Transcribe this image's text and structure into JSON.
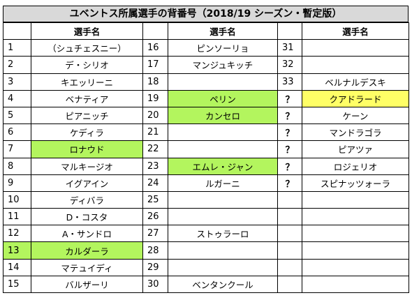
{
  "title": "ユベントス所属選手の背番号（2018/19 シーズン・暫定版）",
  "column_header": "選手名",
  "colors": {
    "header_bg": "#d9d9d9",
    "green": "#b3f55e",
    "yellow": "#ffff66",
    "grid": "#000000"
  },
  "rows": [
    {
      "n1": "1",
      "p1": "（シュチェスニー）",
      "n2": "16",
      "p2": "ピンソーリョ",
      "n3": "31",
      "p3": ""
    },
    {
      "n1": "2",
      "p1": "デ・シリオ",
      "n2": "17",
      "p2": "マンジュキッチ",
      "n3": "32",
      "p3": ""
    },
    {
      "n1": "3",
      "p1": "キエッリーニ",
      "n2": "18",
      "p2": "",
      "n3": "33",
      "p3": "ベルナルデスキ"
    },
    {
      "n1": "4",
      "p1": "ベナティア",
      "n2": "19",
      "p2": "ペリン",
      "p2_hl": "green",
      "n3": "？",
      "p3": "クアドラード",
      "p3_hl": "yellow"
    },
    {
      "n1": "5",
      "p1": "ピアニッチ",
      "n2": "20",
      "p2": "カンセロ",
      "p2_hl": "green",
      "n3": "？",
      "p3": "ケーン"
    },
    {
      "n1": "6",
      "p1": "ケディラ",
      "n2": "21",
      "p2": "",
      "n3": "？",
      "p3": "マンドラゴラ"
    },
    {
      "n1": "7",
      "p1": "ロナウド",
      "p1_hl": "green",
      "n2": "22",
      "p2": "",
      "n3": "？",
      "p3": "ピアツァ"
    },
    {
      "n1": "8",
      "p1": "マルキージオ",
      "n2": "23",
      "p2": "エムレ・ジャン",
      "p2_hl": "green",
      "n3": "？",
      "p3": "ロジェリオ"
    },
    {
      "n1": "9",
      "p1": "イグアイン",
      "n2": "24",
      "p2": "ルガーニ",
      "n3": "？",
      "p3": "スピナッツォーラ"
    },
    {
      "n1": "10",
      "p1": "ディバラ",
      "n2": "25",
      "p2": "",
      "n3": "",
      "p3": ""
    },
    {
      "n1": "11",
      "p1": "D・コスタ",
      "n2": "26",
      "p2": "",
      "n3": "",
      "p3": ""
    },
    {
      "n1": "12",
      "p1": "A・サンドロ",
      "n2": "27",
      "p2": "ストゥラーロ",
      "n3": "",
      "p3": ""
    },
    {
      "n1": "13",
      "n1_hl": "green",
      "p1": "カルダーラ",
      "p1_hl": "green",
      "n2": "28",
      "p2": "",
      "n3": "",
      "p3": ""
    },
    {
      "n1": "14",
      "p1": "マテュイディ",
      "n2": "29",
      "p2": "",
      "n3": "",
      "p3": ""
    },
    {
      "n1": "15",
      "p1": "バルザーリ",
      "n2": "30",
      "p2": "ベンタンクール",
      "n3": "",
      "p3": ""
    }
  ]
}
